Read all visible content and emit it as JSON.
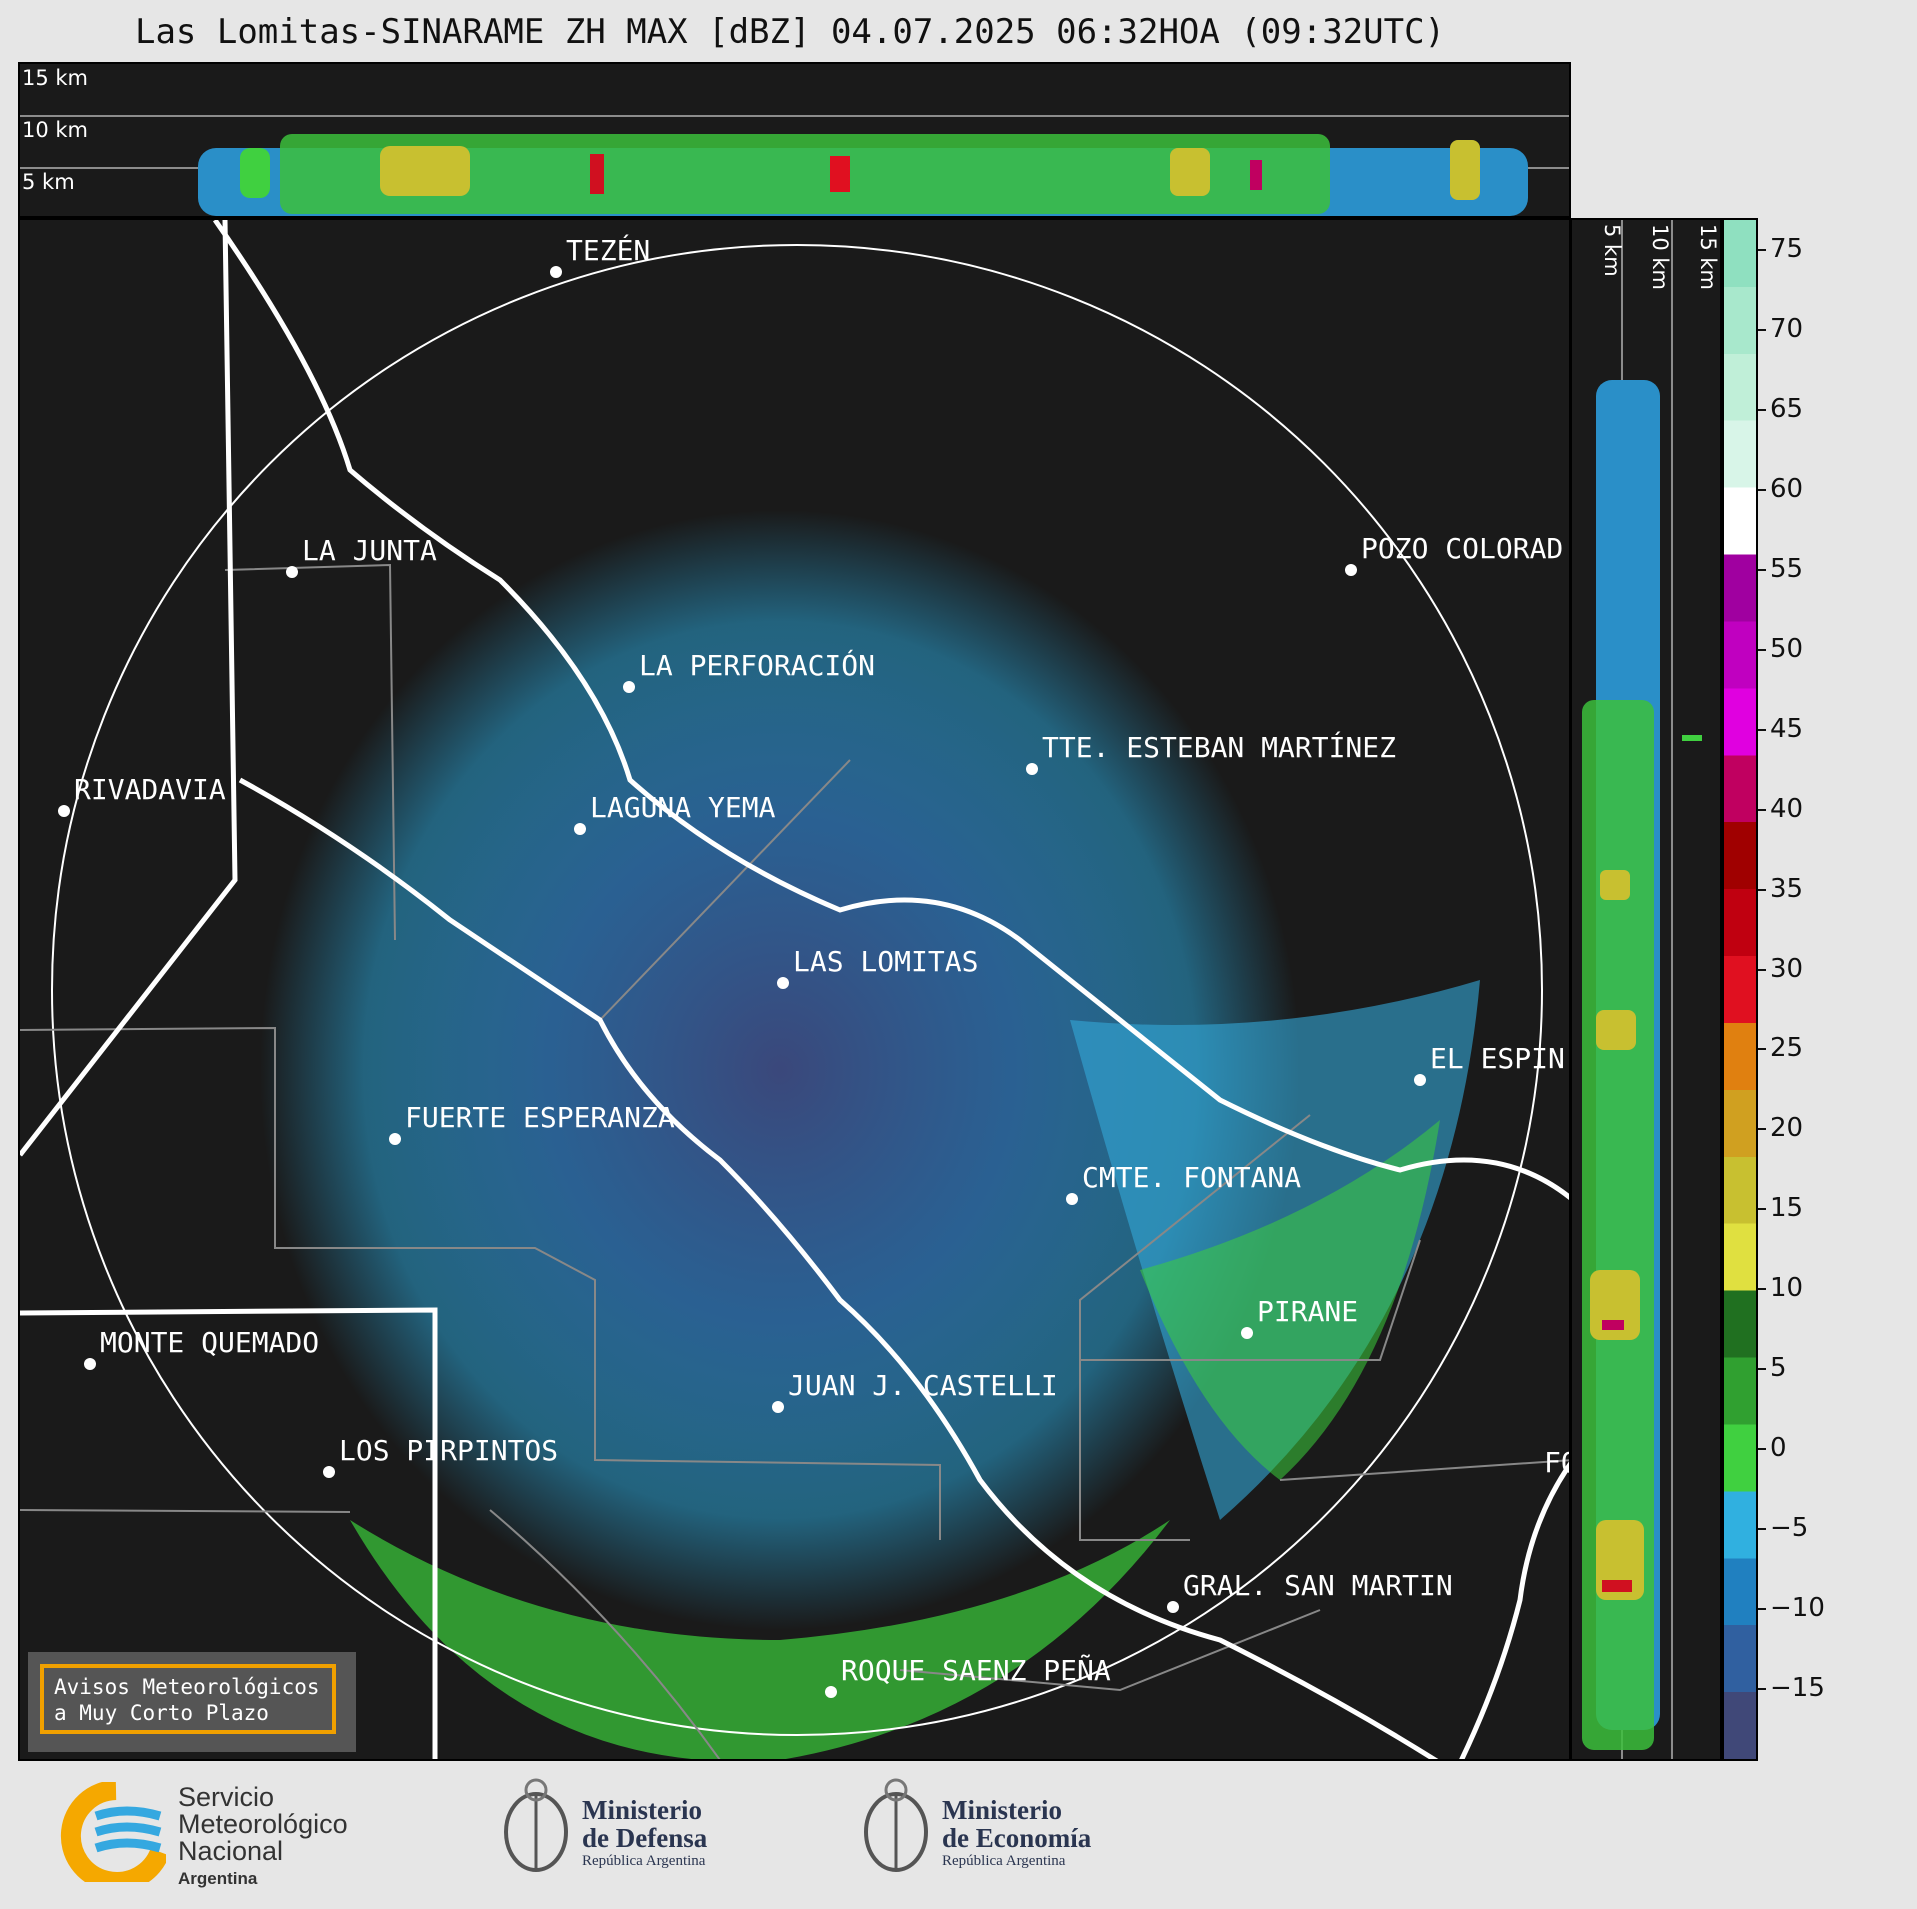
{
  "title": "Las Lomitas-SINARAME ZH MAX [dBZ] 04.07.2025 06:32HOA (09:32UTC)",
  "top_profile": {
    "labels": [
      "15 km",
      "10 km",
      "5 km"
    ]
  },
  "side_profile": {
    "labels": [
      "5 km",
      "10 km",
      "15 km"
    ]
  },
  "colorbar": {
    "ticks": [
      "75",
      "70",
      "65",
      "60",
      "55",
      "50",
      "45",
      "40",
      "35",
      "30",
      "25",
      "20",
      "15",
      "10",
      "5",
      "0",
      "−5",
      "−10",
      "−15"
    ],
    "colors": [
      "#8fe0c0",
      "#a8e8cc",
      "#c0efd8",
      "#d8f5e8",
      "#ffffff",
      "#a000a0",
      "#c000c0",
      "#e000e0",
      "#c00060",
      "#a00000",
      "#c00010",
      "#e01020",
      "#e08010",
      "#d0a020",
      "#c8c030",
      "#e0e040",
      "#207020",
      "#30a030",
      "#40d040",
      "#30b0e0",
      "#2080c0",
      "#3060a0",
      "#404878"
    ]
  },
  "cities": [
    {
      "name": "TEZÉN"
    },
    {
      "name": "LA JUNTA"
    },
    {
      "name": "POZO COLORAD"
    },
    {
      "name": "LA PERFORACIÓN"
    },
    {
      "name": "TTE. ESTEBAN MARTÍNEZ"
    },
    {
      "name": "RIVADAVIA"
    },
    {
      "name": "LAGUNA YEMA"
    },
    {
      "name": "LAS LOMITAS"
    },
    {
      "name": "EL ESPIN"
    },
    {
      "name": "FUERTE ESPERANZA"
    },
    {
      "name": "CMTE. FONTANA"
    },
    {
      "name": "PIRANE"
    },
    {
      "name": "MONTE QUEMADO"
    },
    {
      "name": "JUAN J. CASTELLI"
    },
    {
      "name": "LOS PIRPINTOS"
    },
    {
      "name": "FO"
    },
    {
      "name": "GRAL. SAN MARTIN"
    },
    {
      "name": "ROQUE SAENZ PEÑA"
    }
  ],
  "alert_box": {
    "line1": "Avisos Meteorológicos",
    "line2": "a Muy Corto Plazo"
  },
  "logos": {
    "smn": {
      "line1": "Servicio",
      "line2": "Meteorológico",
      "line3": "Nacional",
      "line4": "Argentina"
    },
    "defensa": {
      "line1": "Ministerio",
      "line2": "de Defensa",
      "line3": "República Argentina"
    },
    "economia": {
      "line1": "Ministerio",
      "line2": "de Economía",
      "line3": "República Argentina"
    }
  }
}
